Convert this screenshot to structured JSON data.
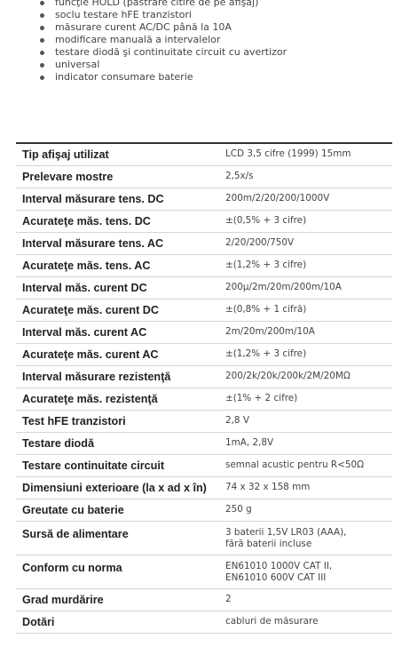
{
  "features": [
    "funcţie HOLD (păstrare citire de pe afişaj)",
    "soclu testare hFE tranzistori",
    "măsurare curent AC/DC până la 10A",
    "modificare manuală a intervalelor",
    "testare diodă şi continuitate circuit cu avertizor",
    "universal",
    "indicator consumare baterie"
  ],
  "specs": [
    {
      "label": "Tip afişaj utilizat",
      "value": "LCD 3,5 cifre (1999) 15mm"
    },
    {
      "label": "Prelevare mostre",
      "value": "2,5x/s"
    },
    {
      "label": "Interval măsurare tens. DC",
      "value": "200m/2/20/200/1000V"
    },
    {
      "label": "Acurateţe măs. tens. DC",
      "value": "±(0,5% + 3 cifre)"
    },
    {
      "label": "Interval măsurare tens. AC",
      "value": "2/20/200/750V"
    },
    {
      "label": "Acurateţe măs. tens. AC",
      "value": "±(1,2% + 3 cifre)"
    },
    {
      "label": "Interval măs. curent DC",
      "value": "200µ/2m/20m/200m/10A"
    },
    {
      "label": "Acurateţe măs. curent DC",
      "value": "±(0,8% + 1 cifră)"
    },
    {
      "label": "Interval măs. curent AC",
      "value": "2m/20m/200m/10A"
    },
    {
      "label": "Acurateţe măs. curent AC",
      "value": "±(1,2% + 3 cifre)"
    },
    {
      "label": "Interval măsurare rezistenţă",
      "value": "200/2k/20k/200k/2M/20MΩ"
    },
    {
      "label": "Acurateţe măs. rezistenţă",
      "value": "±(1% + 2 cifre)"
    },
    {
      "label": "Test hFE tranzistori",
      "value": "2,8 V"
    },
    {
      "label": "Testare diodă",
      "value": "1mA, 2,8V"
    },
    {
      "label": "Testare continuitate circuit",
      "value": "semnal acustic pentru R<50Ω"
    },
    {
      "label": "Dimensiuni exterioare (la x ad x în)",
      "value": "74 x 32 x 158 mm"
    },
    {
      "label": "Greutate cu baterie",
      "value": "250 g"
    },
    {
      "label": "Sursă de alimentare",
      "value": "3 baterii 1,5V LR03 (AAA),",
      "value2": "fără baterii incluse"
    },
    {
      "label": "Conform cu norma",
      "value": "EN61010 1000V CAT II,",
      "value2": "EN61010 600V CAT III"
    },
    {
      "label": "Grad murdărire",
      "value": "2"
    },
    {
      "label": "Dotări",
      "value": "cabluri de măsurare"
    }
  ]
}
